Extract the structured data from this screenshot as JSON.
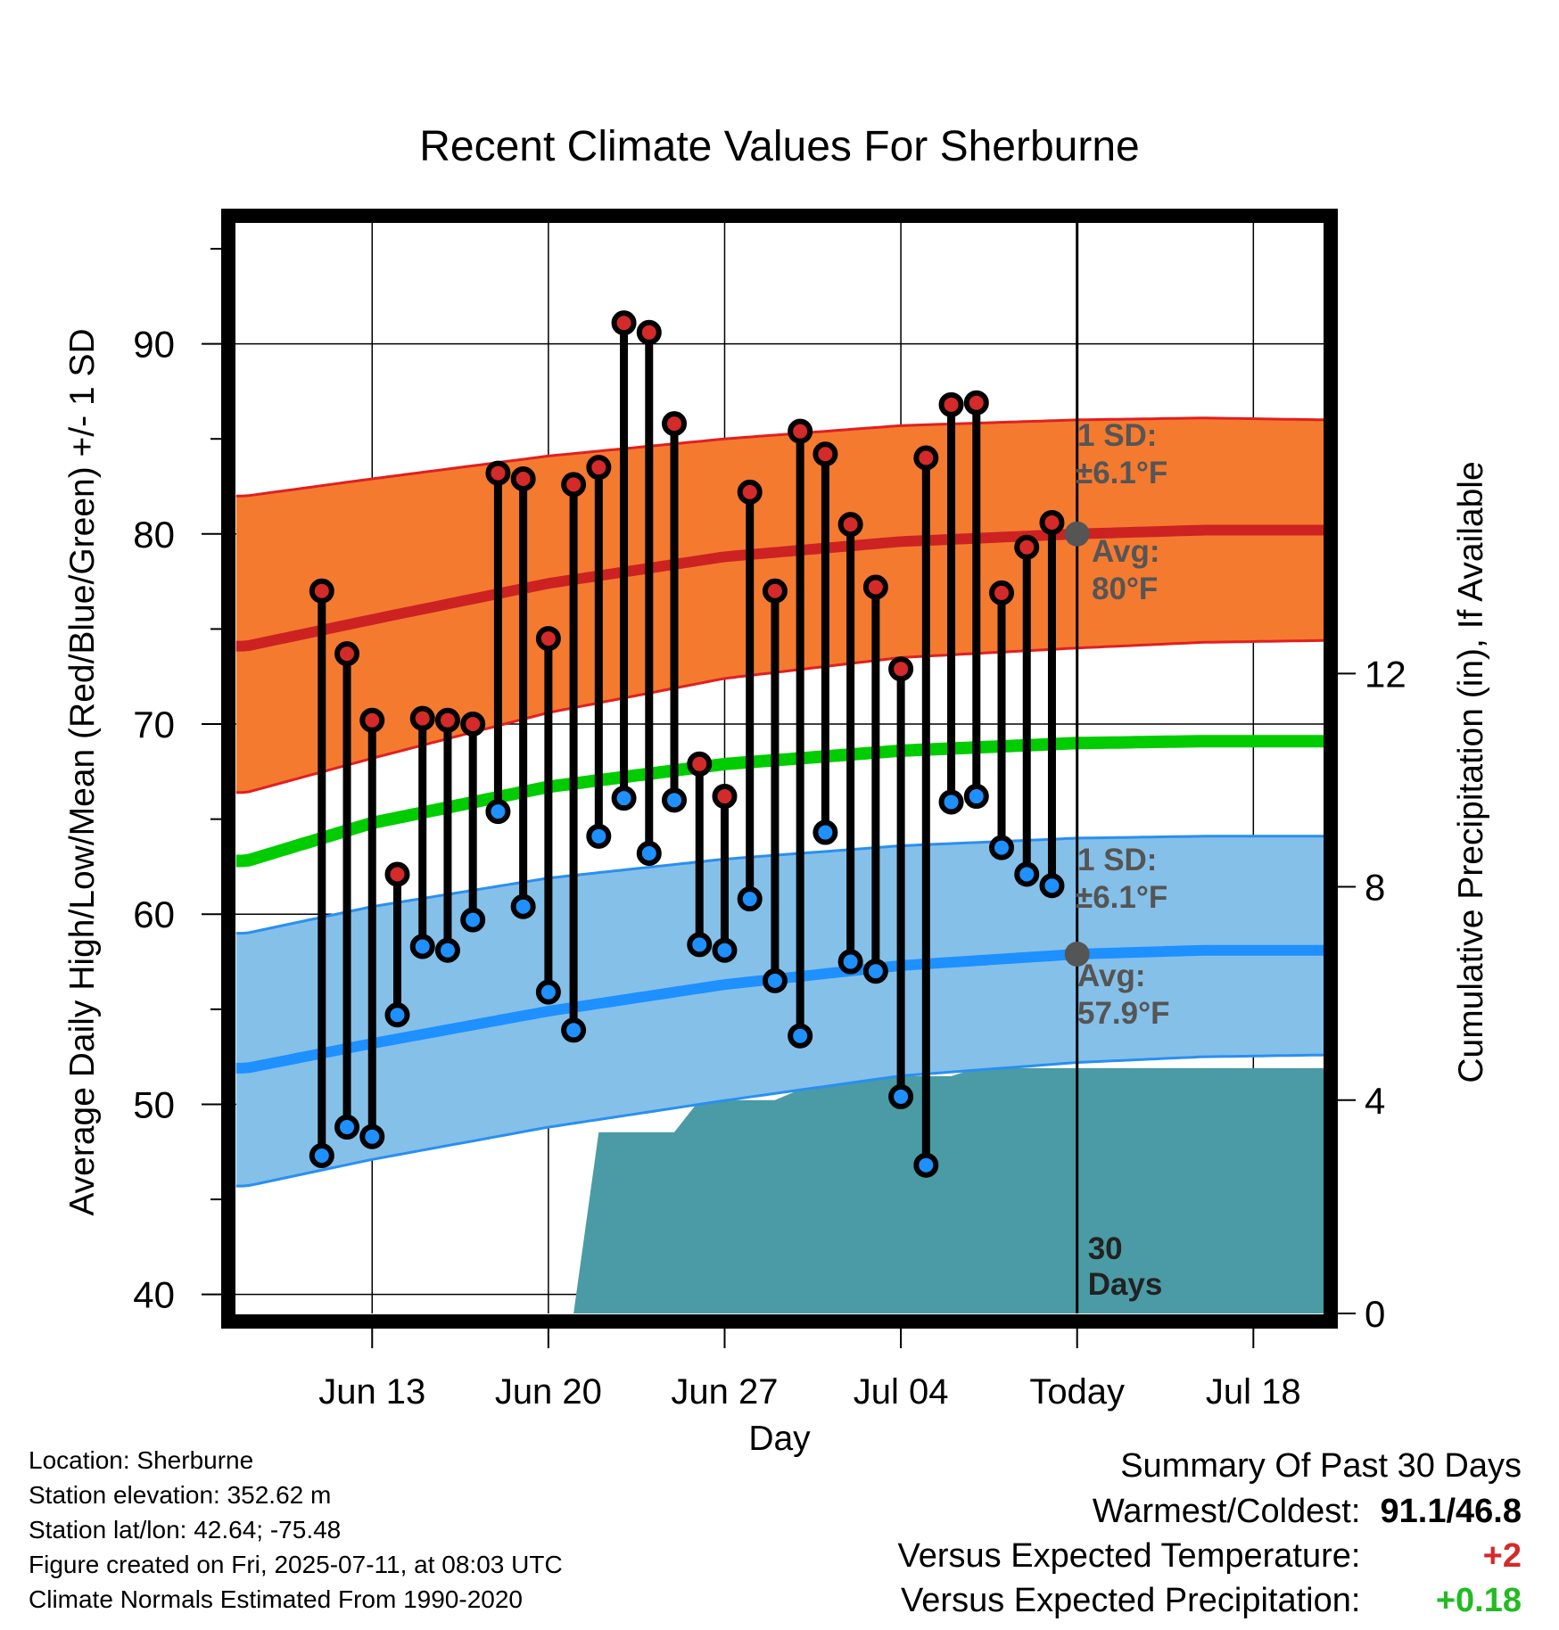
{
  "chart_data": {
    "type": "line",
    "title": "Recent Climate Values For Sherburne",
    "xlabel": "Day",
    "ylabel": "Average Daily High/Low/Mean (Red/Blue/Green) +/- 1 SD",
    "y2label": "Cumulative Precipitation (in), If Available",
    "ylim": [
      39,
      96.5
    ],
    "y2lim": [
      0,
      20.5
    ],
    "yticks": [
      40,
      50,
      60,
      70,
      80,
      90
    ],
    "y2ticks": [
      0,
      4,
      8,
      12
    ],
    "xlim_day": [
      -33.5,
      10
    ],
    "xticks": [
      {
        "day": -28,
        "label": "Jun 13"
      },
      {
        "day": -21,
        "label": "Jun 20"
      },
      {
        "day": -14,
        "label": "Jun 27"
      },
      {
        "day": -7,
        "label": "Jul 04"
      },
      {
        "day": 0,
        "label": "Today"
      },
      {
        "day": 7,
        "label": "Jul 18"
      }
    ],
    "today_line_label": [
      "30",
      "Days"
    ],
    "normals": {
      "day": [
        -33,
        -28,
        -21,
        -14,
        -7,
        0,
        5,
        10
      ],
      "high_avg": [
        74.1,
        75.5,
        77.4,
        78.8,
        79.6,
        80.0,
        80.2,
        80.2
      ],
      "high_upper": [
        82.0,
        82.9,
        84.1,
        85.0,
        85.7,
        86.0,
        86.1,
        86.0
      ],
      "high_lower": [
        66.4,
        68.2,
        70.6,
        72.4,
        73.5,
        74.0,
        74.3,
        74.4
      ],
      "mean_avg": [
        62.8,
        64.8,
        66.7,
        67.9,
        68.6,
        69.0,
        69.1,
        69.1
      ],
      "low_avg": [
        51.9,
        53.2,
        54.9,
        56.3,
        57.3,
        57.9,
        58.1,
        58.1
      ],
      "low_upper": [
        59.0,
        60.4,
        61.9,
        62.9,
        63.6,
        64.0,
        64.1,
        64.1
      ],
      "low_lower": [
        45.7,
        47.1,
        48.8,
        50.2,
        51.5,
        52.2,
        52.5,
        52.6
      ]
    },
    "series": [
      {
        "name": "High",
        "day": [
          -30,
          -29,
          -28,
          -27,
          -26,
          -25,
          -24,
          -23,
          -22,
          -21,
          -20,
          -19,
          -18,
          -17,
          -16,
          -15,
          -14,
          -13,
          -12,
          -11,
          -10,
          -9,
          -8,
          -7,
          -6,
          -5,
          -4,
          -3,
          -2,
          -1
        ],
        "values": [
          77.0,
          73.7,
          70.2,
          62.1,
          70.3,
          70.2,
          70.0,
          83.2,
          82.9,
          74.5,
          82.6,
          83.5,
          91.1,
          90.6,
          85.8,
          67.9,
          66.2,
          82.2,
          77.0,
          85.4,
          84.2,
          80.5,
          77.2,
          72.9,
          84.0,
          86.8,
          86.9,
          76.9,
          79.3,
          80.6
        ],
        "color": "#d42a2a"
      },
      {
        "name": "Low",
        "day": [
          -30,
          -29,
          -28,
          -27,
          -26,
          -25,
          -24,
          -23,
          -22,
          -21,
          -20,
          -19,
          -18,
          -17,
          -16,
          -15,
          -14,
          -13,
          -12,
          -11,
          -10,
          -9,
          -8,
          -7,
          -6,
          -5,
          -4,
          -3,
          -2,
          -1
        ],
        "values": [
          47.3,
          48.8,
          48.3,
          54.7,
          58.3,
          58.1,
          59.7,
          65.4,
          60.4,
          55.9,
          53.9,
          64.1,
          66.1,
          63.2,
          66.0,
          58.4,
          58.1,
          60.8,
          56.5,
          53.6,
          64.3,
          57.5,
          57.0,
          50.4,
          46.8,
          65.9,
          66.2,
          63.5,
          62.1,
          61.5
        ],
        "color": "#1e90ff"
      }
    ],
    "precipitation": {
      "day": [
        -30,
        -29,
        -28,
        -27,
        -26,
        -25,
        -24,
        -23,
        -22,
        -21,
        -20,
        -19,
        -18,
        -17,
        -16,
        -15,
        -14,
        -13,
        -12,
        -11,
        -10,
        -9,
        -8,
        -7,
        -6,
        -5,
        -4,
        -3,
        -2,
        -1,
        0,
        10
      ],
      "values": [
        0,
        0,
        0,
        0,
        0,
        0,
        0,
        0,
        0,
        0,
        0,
        3.4,
        3.4,
        3.4,
        3.4,
        4.0,
        4.0,
        4.0,
        4.0,
        4.2,
        4.4,
        4.4,
        4.45,
        4.45,
        4.45,
        4.45,
        4.6,
        4.6,
        4.6,
        4.6,
        4.6,
        4.6
      ],
      "color": "#4a9ba5"
    },
    "annotations": {
      "high_sd_line1": "1 SD:",
      "high_sd_line2": "±6.1°F",
      "high_avg_line1": "Avg:",
      "high_avg_line2": "80°F",
      "low_sd_line1": "1 SD:",
      "low_sd_line2": "±6.1°F",
      "low_avg_line1": "Avg:",
      "low_avg_line2": "57.9°F",
      "today_high_avg": 80.0,
      "today_low_avg": 57.9
    },
    "colors": {
      "high_band": "#f47a30",
      "high_line": "#cc2222",
      "mean_line": "#00cc00",
      "low_band": "#85c0e8",
      "low_line": "#1e90ff",
      "annotation": "#555555"
    },
    "grid": true
  },
  "info": {
    "location": "Location: Sherburne",
    "elevation": "Station elevation: 352.62 m",
    "latlon": "Station lat/lon: 42.64; -75.48",
    "created": "Figure created on Fri, 2025-07-11, at 08:03 UTC",
    "normals": "Climate Normals Estimated From 1990-2020"
  },
  "summary": {
    "title": "Summary Of Past 30 Days",
    "warm_cold_label": "Warmest/Coldest:",
    "warm_cold_value": "91.1/46.8",
    "temp_label": "Versus Expected Temperature:",
    "temp_value": "+2",
    "temp_color": "#d42a2a",
    "precip_label": "Versus Expected Precipitation:",
    "precip_value": "+0.18",
    "precip_color": "#22bb22"
  }
}
